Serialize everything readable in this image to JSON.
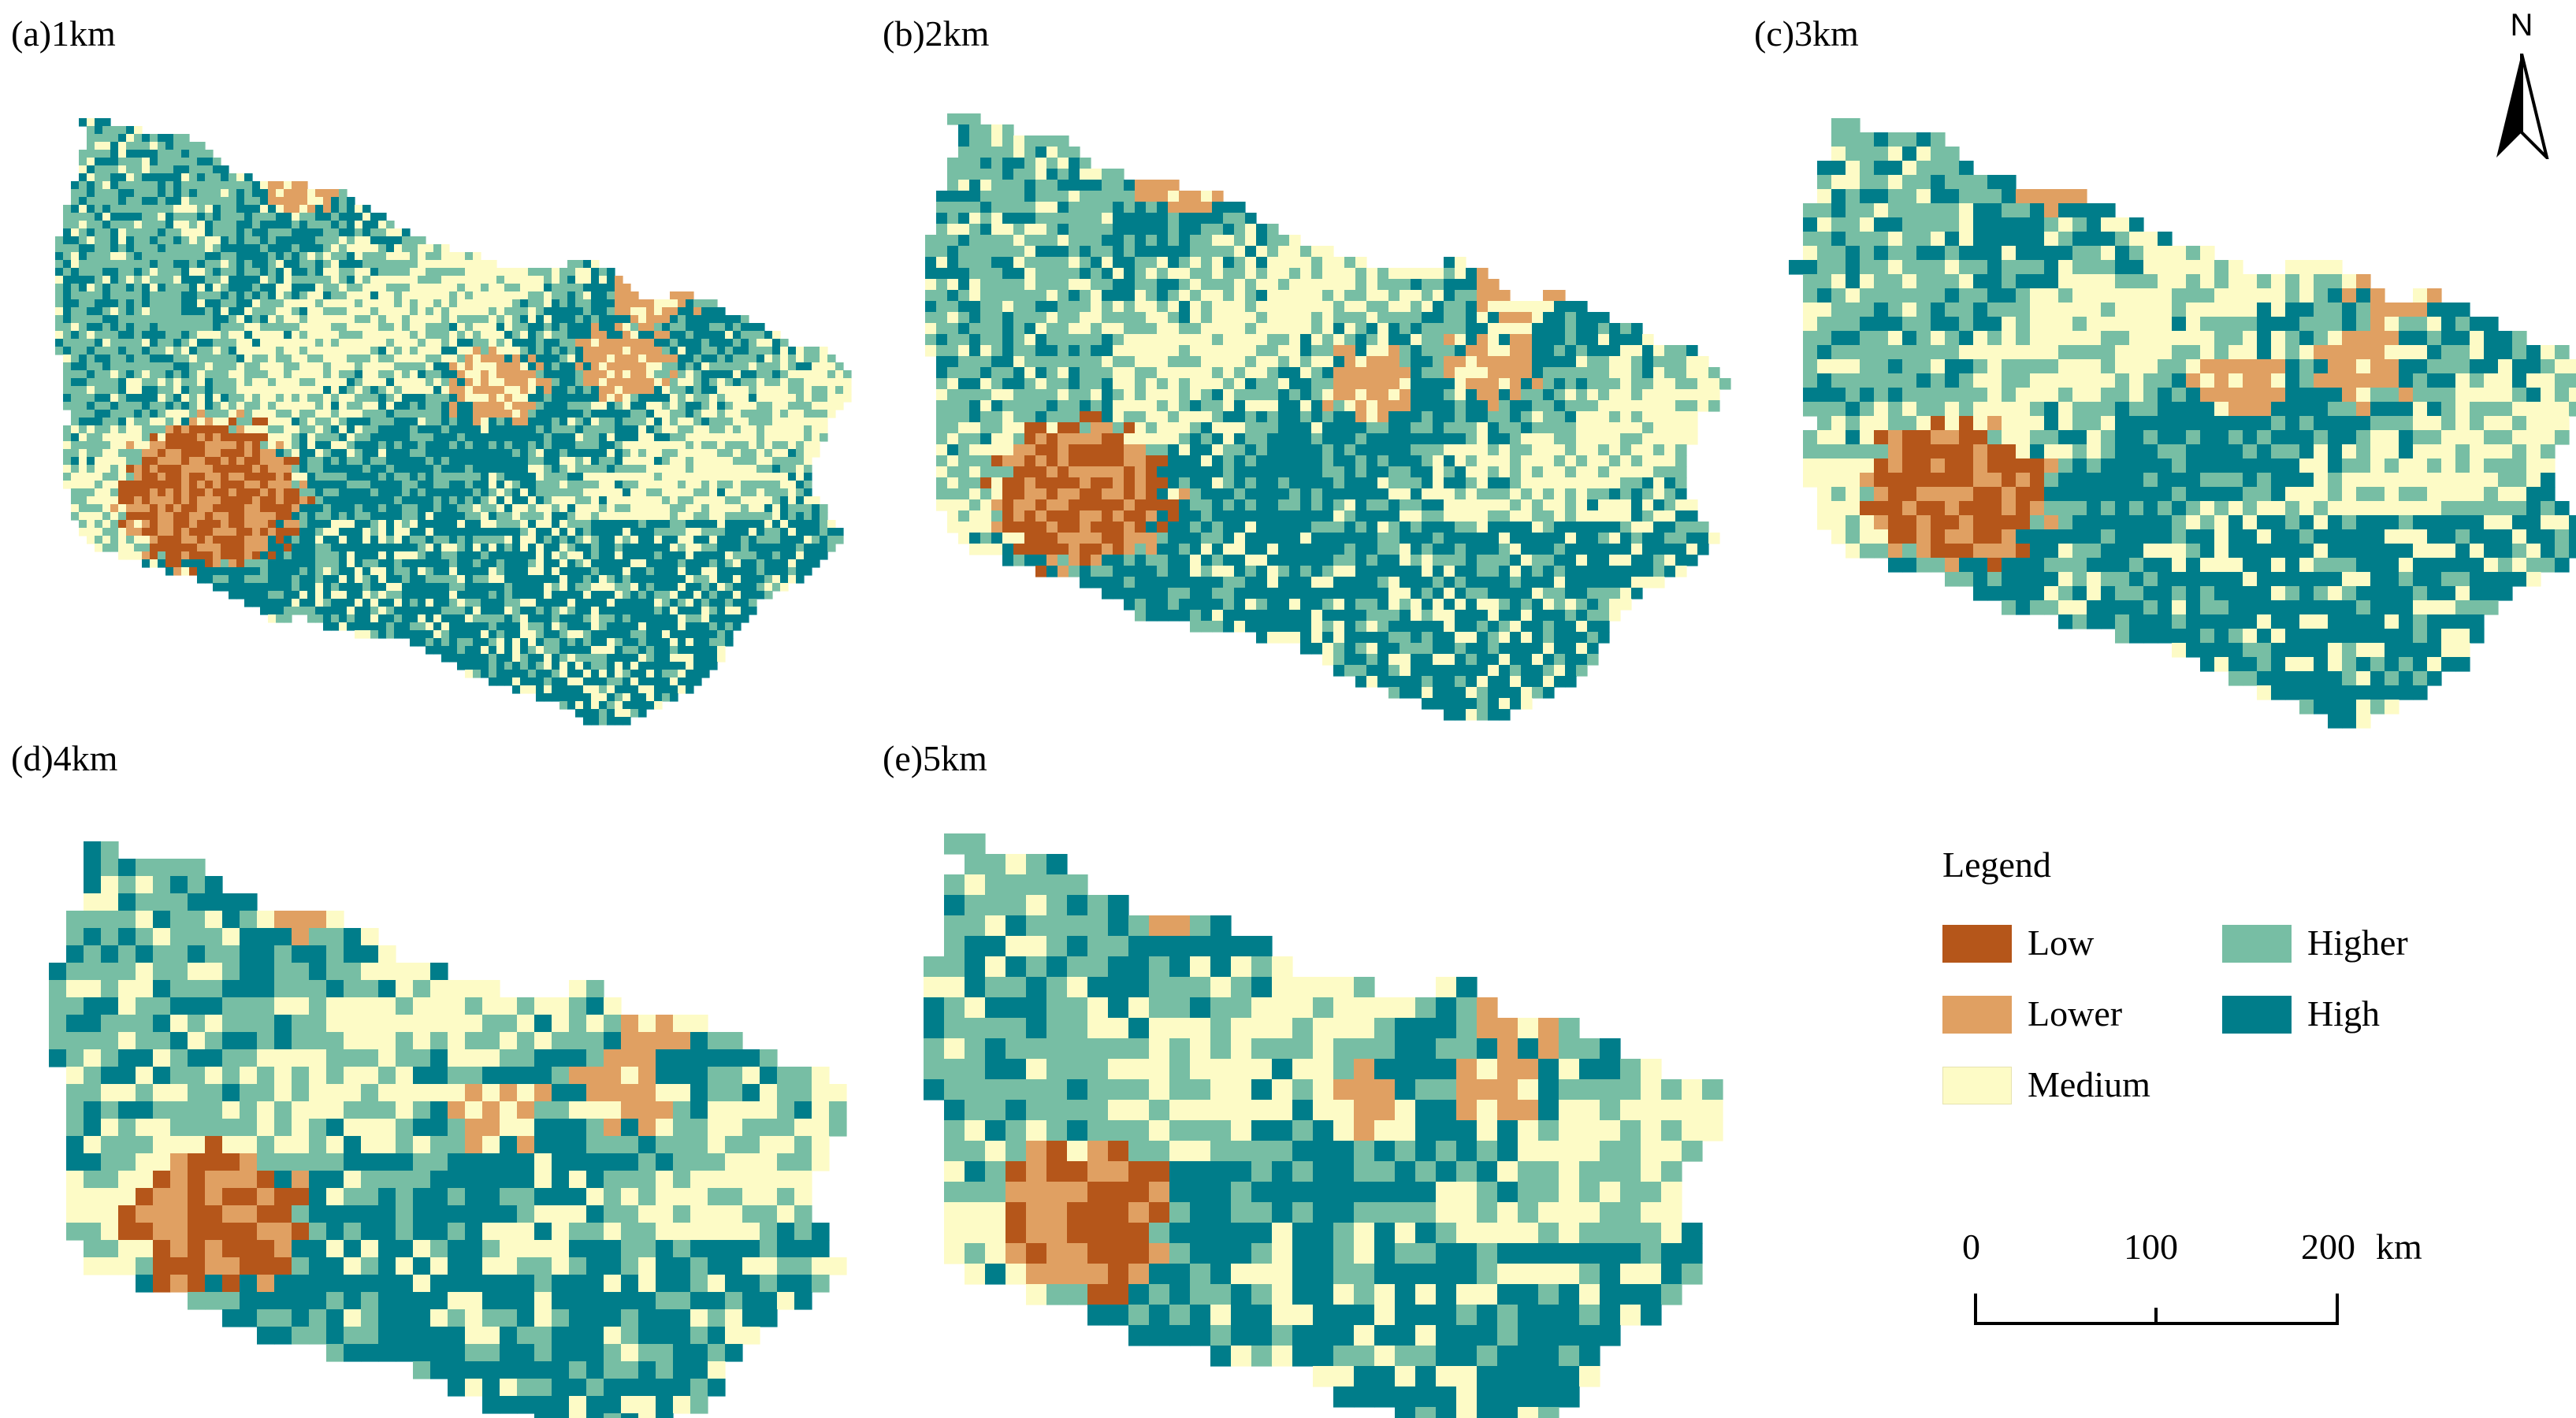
{
  "panels": [
    {
      "label": "(a)1km",
      "resolution_km": 1
    },
    {
      "label": "(b)2km",
      "resolution_km": 2
    },
    {
      "label": "(c)3km",
      "resolution_km": 3
    },
    {
      "label": "(d)4km",
      "resolution_km": 4
    },
    {
      "label": "(e)5km",
      "resolution_km": 5
    }
  ],
  "north_arrow": {
    "letter": "N",
    "icon": "north-arrow-icon"
  },
  "legend": {
    "title": "Legend",
    "items": [
      {
        "label": "Low",
        "color": "#b5561a"
      },
      {
        "label": "Lower",
        "color": "#e0a062"
      },
      {
        "label": "Medium",
        "color": "#fdfbc6"
      },
      {
        "label": "Higher",
        "color": "#77bea4"
      },
      {
        "label": "High",
        "color": "#007d8a"
      }
    ]
  },
  "scale_bar": {
    "labels": [
      "0",
      "100",
      "200"
    ],
    "unit": "km"
  }
}
